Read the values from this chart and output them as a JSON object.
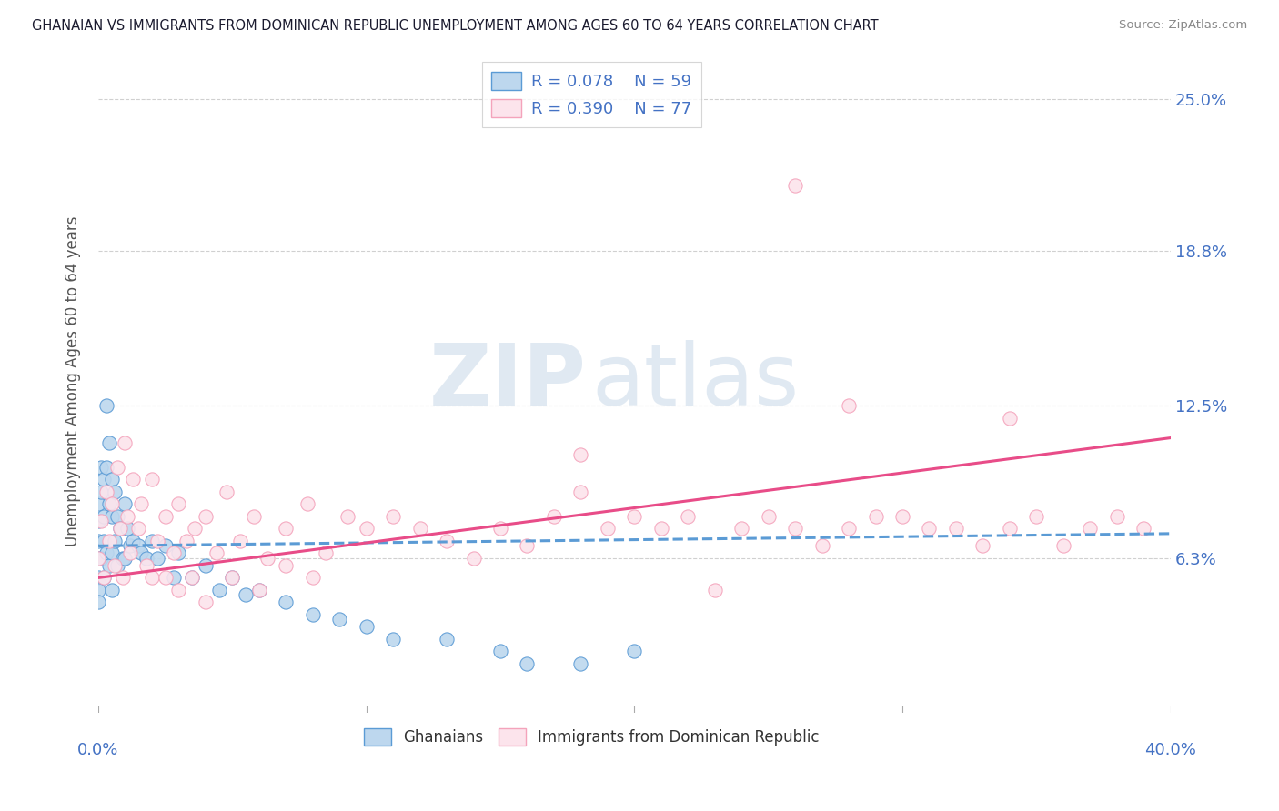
{
  "title": "GHANAIAN VS IMMIGRANTS FROM DOMINICAN REPUBLIC UNEMPLOYMENT AMONG AGES 60 TO 64 YEARS CORRELATION CHART",
  "source": "Source: ZipAtlas.com",
  "ylabel": "Unemployment Among Ages 60 to 64 years",
  "ytick_labels": [
    "6.3%",
    "12.5%",
    "18.8%",
    "25.0%"
  ],
  "ytick_values": [
    0.063,
    0.125,
    0.188,
    0.25
  ],
  "xlim": [
    0.0,
    0.4
  ],
  "ylim": [
    0.0,
    0.27
  ],
  "watermark_zip": "ZIP",
  "watermark_atlas": "atlas",
  "color_blue": "#5b9bd5",
  "color_blue_fill": "#bdd7ee",
  "color_pink": "#f4a3bb",
  "color_pink_fill": "#fce4ec",
  "color_line_blue": "#5b9bd5",
  "color_line_pink": "#e84c88",
  "color_axis_label": "#4472c4",
  "grid_color": "#d0d0d0",
  "blue_x": [
    0.0,
    0.0,
    0.0,
    0.0,
    0.0,
    0.0,
    0.0,
    0.001,
    0.001,
    0.001,
    0.002,
    0.002,
    0.002,
    0.002,
    0.003,
    0.003,
    0.003,
    0.004,
    0.004,
    0.004,
    0.005,
    0.005,
    0.005,
    0.005,
    0.006,
    0.006,
    0.007,
    0.007,
    0.008,
    0.009,
    0.01,
    0.01,
    0.011,
    0.012,
    0.013,
    0.015,
    0.016,
    0.018,
    0.02,
    0.022,
    0.025,
    0.028,
    0.03,
    0.035,
    0.04,
    0.045,
    0.05,
    0.055,
    0.06,
    0.07,
    0.08,
    0.09,
    0.1,
    0.11,
    0.13,
    0.15,
    0.16,
    0.18,
    0.2
  ],
  "blue_y": [
    0.055,
    0.063,
    0.07,
    0.078,
    0.085,
    0.05,
    0.045,
    0.1,
    0.09,
    0.063,
    0.095,
    0.08,
    0.07,
    0.055,
    0.125,
    0.1,
    0.065,
    0.11,
    0.085,
    0.06,
    0.095,
    0.08,
    0.065,
    0.05,
    0.09,
    0.07,
    0.08,
    0.06,
    0.075,
    0.063,
    0.085,
    0.063,
    0.075,
    0.068,
    0.07,
    0.068,
    0.065,
    0.063,
    0.07,
    0.063,
    0.068,
    0.055,
    0.065,
    0.055,
    0.06,
    0.05,
    0.055,
    0.048,
    0.05,
    0.045,
    0.04,
    0.038,
    0.035,
    0.03,
    0.03,
    0.025,
    0.02,
    0.02,
    0.025
  ],
  "pink_x": [
    0.0,
    0.001,
    0.002,
    0.003,
    0.004,
    0.005,
    0.006,
    0.007,
    0.008,
    0.009,
    0.01,
    0.011,
    0.012,
    0.013,
    0.015,
    0.016,
    0.018,
    0.02,
    0.022,
    0.025,
    0.028,
    0.03,
    0.033,
    0.036,
    0.04,
    0.044,
    0.048,
    0.053,
    0.058,
    0.063,
    0.07,
    0.078,
    0.085,
    0.093,
    0.1,
    0.11,
    0.12,
    0.13,
    0.14,
    0.15,
    0.16,
    0.17,
    0.18,
    0.19,
    0.2,
    0.21,
    0.22,
    0.23,
    0.24,
    0.25,
    0.26,
    0.27,
    0.28,
    0.29,
    0.3,
    0.31,
    0.32,
    0.33,
    0.34,
    0.35,
    0.36,
    0.37,
    0.38,
    0.39,
    0.02,
    0.025,
    0.03,
    0.035,
    0.04,
    0.05,
    0.06,
    0.07,
    0.08,
    0.28,
    0.34,
    0.26,
    0.18
  ],
  "pink_y": [
    0.063,
    0.078,
    0.055,
    0.09,
    0.07,
    0.085,
    0.06,
    0.1,
    0.075,
    0.055,
    0.11,
    0.08,
    0.065,
    0.095,
    0.075,
    0.085,
    0.06,
    0.095,
    0.07,
    0.08,
    0.065,
    0.085,
    0.07,
    0.075,
    0.08,
    0.065,
    0.09,
    0.07,
    0.08,
    0.063,
    0.075,
    0.085,
    0.065,
    0.08,
    0.075,
    0.08,
    0.075,
    0.07,
    0.063,
    0.075,
    0.068,
    0.08,
    0.09,
    0.075,
    0.08,
    0.075,
    0.08,
    0.05,
    0.075,
    0.08,
    0.075,
    0.068,
    0.075,
    0.08,
    0.08,
    0.075,
    0.075,
    0.068,
    0.075,
    0.08,
    0.068,
    0.075,
    0.08,
    0.075,
    0.055,
    0.055,
    0.05,
    0.055,
    0.045,
    0.055,
    0.05,
    0.06,
    0.055,
    0.125,
    0.12,
    0.215,
    0.105
  ],
  "blue_line_x0": 0.0,
  "blue_line_x1": 0.4,
  "blue_line_y0": 0.068,
  "blue_line_y1": 0.073,
  "pink_line_x0": 0.0,
  "pink_line_x1": 0.4,
  "pink_line_y0": 0.055,
  "pink_line_y1": 0.112
}
